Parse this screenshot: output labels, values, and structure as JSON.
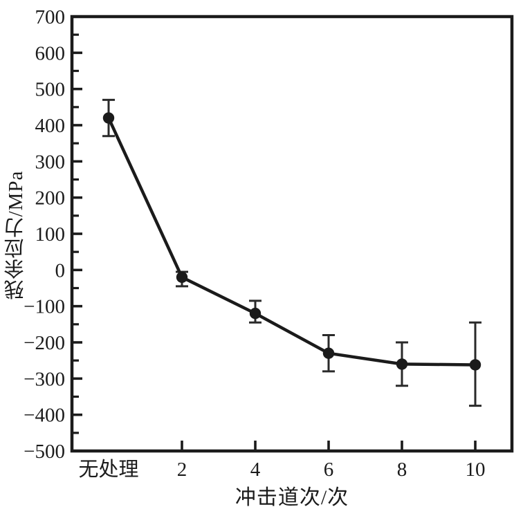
{
  "figure": {
    "kind": "scanned-journal-figure",
    "background": "#ffffff",
    "ink_color": "#1b1b1b"
  },
  "chart_data": {
    "type": "line",
    "title": "",
    "xlabel": "冲击道次/次",
    "ylabel": "残余应力/MPa",
    "categories": [
      "无处理",
      "2",
      "4",
      "6",
      "8",
      "10"
    ],
    "series": [
      {
        "name": "残余应力",
        "values": [
          420,
          -20,
          -120,
          -230,
          -260,
          -262
        ],
        "error_low": [
          370,
          -45,
          -145,
          -280,
          -320,
          -375
        ],
        "error_high": [
          470,
          -5,
          -85,
          -180,
          -200,
          -145
        ]
      }
    ],
    "ylim": [
      -500,
      700
    ],
    "y_major_step": 100,
    "y_minor_step": 50,
    "y_tick_labels": [
      "700",
      "600",
      "500",
      "400",
      "300",
      "200",
      "100",
      "0",
      "−100",
      "−200",
      "−300",
      "−400",
      "−500"
    ],
    "x_ticked_categories": [
      "2",
      "4",
      "6",
      "8",
      "10"
    ],
    "grid": false,
    "legend": false,
    "marker": "circle",
    "line_color": "#1b1b1b",
    "marker_color": "#1b1b1b",
    "errorbar_color": "#2a2a2a"
  }
}
